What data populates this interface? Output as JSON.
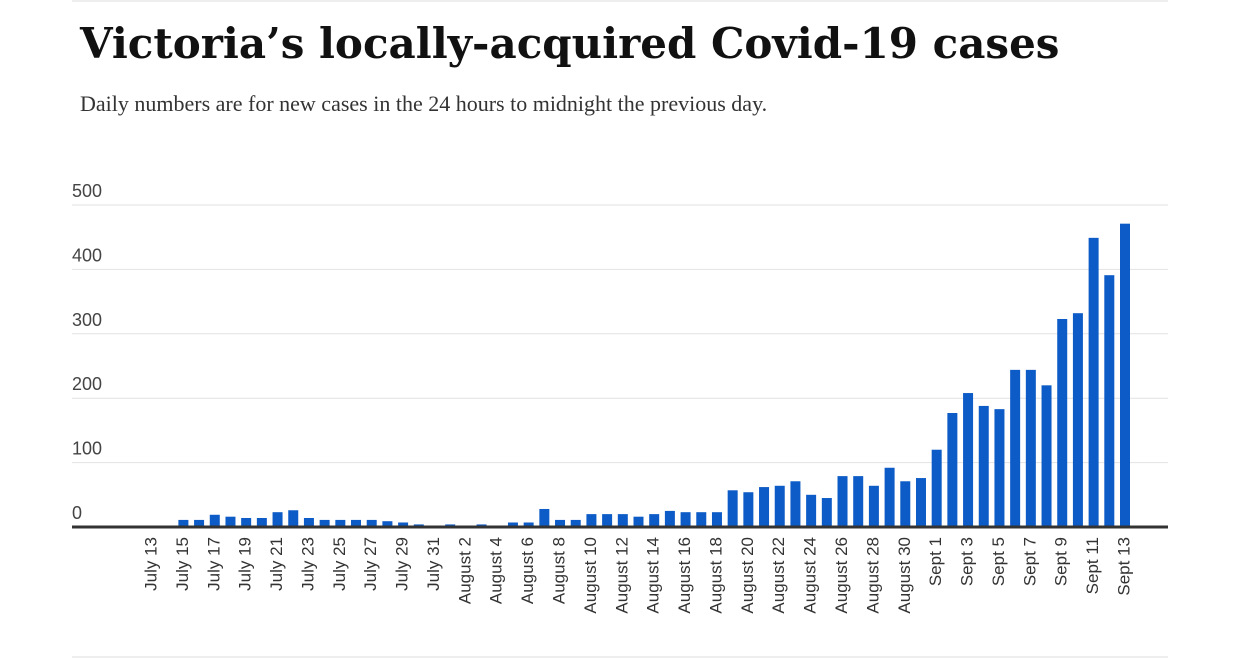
{
  "chart_data": {
    "type": "bar",
    "title": "Victoria’s locally-acquired Covid-19 cases",
    "subtitle": "Daily numbers are for new cases in the 24 hours to midnight the previous day.",
    "categories": [
      "July 13",
      null,
      "July 15",
      null,
      "July 17",
      null,
      "July 19",
      null,
      "July 21",
      null,
      "July 23",
      null,
      "July 25",
      null,
      "July 27",
      null,
      "July 29",
      null,
      "July 31",
      null,
      "August 2",
      null,
      "August 4",
      null,
      "August 6",
      null,
      "August 8",
      null,
      "August 10",
      null,
      "August 12",
      null,
      "August 14",
      null,
      "August 16",
      null,
      "August 18",
      null,
      "August 20",
      null,
      "August 22",
      null,
      "August 24",
      null,
      "August 26",
      null,
      "August 28",
      null,
      "August 30",
      null,
      "Sept 1",
      null,
      "Sept 3",
      null,
      "Sept 5",
      null,
      "Sept 7",
      null,
      "Sept 9",
      null,
      "Sept 11",
      null,
      "Sept 13"
    ],
    "values": [
      0,
      0,
      11,
      11,
      19,
      16,
      14,
      14,
      23,
      26,
      14,
      11,
      11,
      11,
      11,
      9,
      7,
      4,
      0,
      4,
      0,
      4,
      0,
      7,
      7,
      28,
      11,
      11,
      20,
      20,
      20,
      16,
      20,
      25,
      23,
      23,
      23,
      57,
      54,
      62,
      64,
      71,
      50,
      45,
      79,
      79,
      64,
      92,
      71,
      76,
      120,
      177,
      208,
      188,
      183,
      244,
      244,
      220,
      323,
      332,
      449,
      391,
      471
    ],
    "color": "#0d5bc6",
    "ylim": [
      0,
      500
    ],
    "yticks": [
      0,
      100,
      200,
      300,
      400,
      500
    ],
    "grid": true
  }
}
